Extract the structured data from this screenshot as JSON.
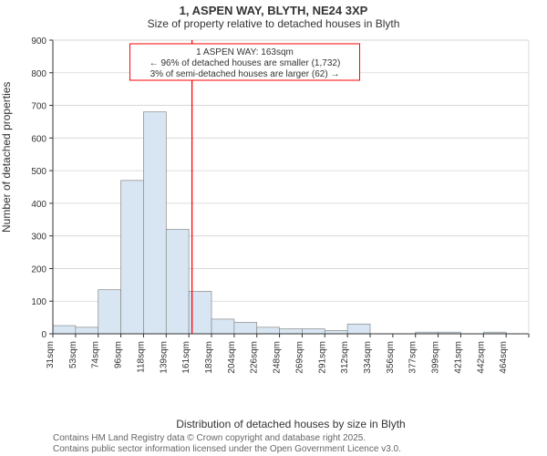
{
  "title_line1": "1, ASPEN WAY, BLYTH, NE24 3XP",
  "title_line2": "Size of property relative to detached houses in Blyth",
  "y_axis_label": "Number of detached properties",
  "x_axis_label": "Distribution of detached houses by size in Blyth",
  "footer_line1": "Contains HM Land Registry data © Crown copyright and database right 2025.",
  "footer_line2": "Contains public sector information licensed under the Open Government Licence v3.0.",
  "callout": {
    "line1": "1 ASPEN WAY: 163sqm",
    "line2": "← 96% of detached houses are smaller (1,732)",
    "line3": "3% of semi-detached houses are larger (62) →",
    "border_color": "#ff0000",
    "bg_color": "#ffffff",
    "text_color": "#333333",
    "font_size_pt": 9
  },
  "chart": {
    "type": "histogram",
    "bar_fill": "#d8e6f3",
    "bar_stroke": "#888888",
    "axis_color": "#333333",
    "grid_color": "#d3d3d3",
    "tick_font_size_pt": 9,
    "tick_color": "#333333",
    "background_color": "#ffffff",
    "highlight_line_color": "#ff0000",
    "highlight_value": 163,
    "ylim": [
      0,
      900
    ],
    "ytick_step": 100,
    "x_bin_width": 21.5,
    "x_start": 31,
    "x_labels": [
      "31sqm",
      "53sqm",
      "74sqm",
      "96sqm",
      "118sqm",
      "139sqm",
      "161sqm",
      "183sqm",
      "204sqm",
      "226sqm",
      "248sqm",
      "269sqm",
      "291sqm",
      "312sqm",
      "334sqm",
      "356sqm",
      "377sqm",
      "399sqm",
      "421sqm",
      "442sqm",
      "464sqm"
    ],
    "values": [
      25,
      20,
      135,
      470,
      680,
      320,
      130,
      45,
      35,
      20,
      15,
      15,
      10,
      30,
      0,
      0,
      5,
      5,
      0,
      5,
      0
    ]
  },
  "title_fontsize_pt": 10,
  "axis_label_fontsize_pt": 10,
  "font_family": "Arial"
}
